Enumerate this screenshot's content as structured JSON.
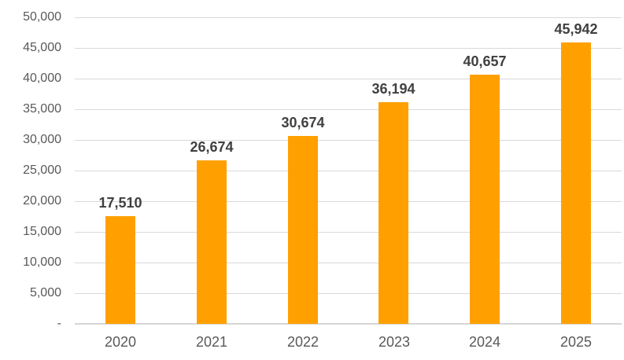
{
  "chart_data": {
    "type": "bar",
    "categories": [
      "2020",
      "2021",
      "2022",
      "2023",
      "2024",
      "2025"
    ],
    "values": [
      17510,
      26674,
      30674,
      36194,
      40657,
      45942
    ],
    "data_labels": [
      "17,510",
      "26,674",
      "30,674",
      "36,194",
      "40,657",
      "45,942"
    ],
    "y_ticks_top_to_bottom": [
      "50,000",
      "45,000",
      "40,000",
      "35,000",
      "30,000",
      "25,000",
      "20,000",
      "15,000",
      "10,000",
      "5,000",
      "-"
    ],
    "ylim": [
      0,
      50000
    ],
    "y_tick_step": 5000,
    "grid": true,
    "legend": false,
    "xlabel": "",
    "ylabel": "",
    "colors": {
      "bar": "#FFA000",
      "gridline": "#D9D9D9",
      "axis_line": "#D6D6D6",
      "tick_label": "#595959",
      "data_label": "#404040",
      "background": "#FFFFFF"
    }
  }
}
